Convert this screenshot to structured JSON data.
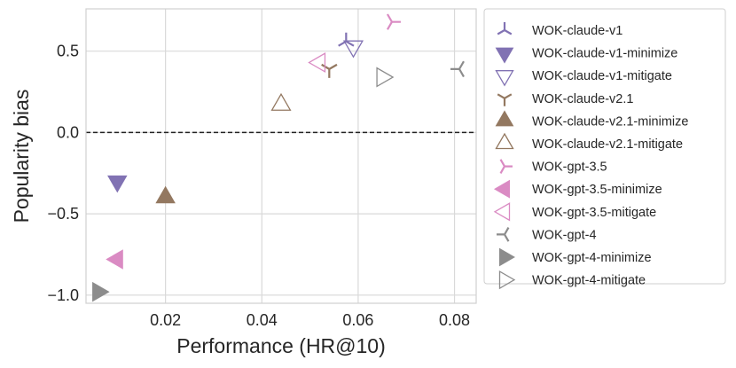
{
  "chart_data": {
    "type": "scatter",
    "xlabel": "Performance (HR@10)",
    "ylabel": "Popularity bias",
    "xlim": [
      0.0035,
      0.0845
    ],
    "ylim": [
      -1.05,
      0.76
    ],
    "xticks": [
      0.02,
      0.04,
      0.06,
      0.08
    ],
    "xtick_labels": [
      "0.02",
      "0.04",
      "0.06",
      "0.08"
    ],
    "yticks": [
      -1.0,
      -0.5,
      0.0,
      0.5
    ],
    "ytick_labels": [
      "−1.0",
      "−0.5",
      "0.0",
      "0.5"
    ],
    "grid": true,
    "reference_line": {
      "y": 0.0,
      "style": "dashed",
      "color": "#222222"
    },
    "legend_position": "outside-right",
    "series": [
      {
        "name": "WOK-claude-v1",
        "color": "#8172b3",
        "marker": "tri_down",
        "filled": false,
        "x": 0.0575,
        "y": 0.56
      },
      {
        "name": "WOK-claude-v1-minimize",
        "color": "#8172b3",
        "marker": "triangle_down",
        "filled": true,
        "x": 0.01,
        "y": -0.3
      },
      {
        "name": "WOK-claude-v1-mitigate",
        "color": "#8172b3",
        "marker": "triangle_down",
        "filled": false,
        "x": 0.059,
        "y": 0.53
      },
      {
        "name": "WOK-claude-v2.1",
        "color": "#937860",
        "marker": "tri_up",
        "filled": false,
        "x": 0.054,
        "y": 0.39
      },
      {
        "name": "WOK-claude-v2.1-minimize",
        "color": "#937860",
        "marker": "triangle_up",
        "filled": true,
        "x": 0.02,
        "y": -0.4
      },
      {
        "name": "WOK-claude-v2.1-mitigate",
        "color": "#937860",
        "marker": "triangle_up",
        "filled": false,
        "x": 0.044,
        "y": 0.17
      },
      {
        "name": "WOK-gpt-3.5",
        "color": "#da8bc3",
        "marker": "tri_left",
        "filled": false,
        "x": 0.067,
        "y": 0.68
      },
      {
        "name": "WOK-gpt-3.5-minimize",
        "color": "#da8bc3",
        "marker": "triangle_left",
        "filled": true,
        "x": 0.01,
        "y": -0.78
      },
      {
        "name": "WOK-gpt-3.5-mitigate",
        "color": "#da8bc3",
        "marker": "triangle_left",
        "filled": false,
        "x": 0.052,
        "y": 0.43
      },
      {
        "name": "WOK-gpt-4",
        "color": "#8c8c8c",
        "marker": "tri_right",
        "filled": false,
        "x": 0.081,
        "y": 0.39
      },
      {
        "name": "WOK-gpt-4-minimize",
        "color": "#8c8c8c",
        "marker": "triangle_right",
        "filled": true,
        "x": 0.006,
        "y": -0.98
      },
      {
        "name": "WOK-gpt-4-mitigate",
        "color": "#8c8c8c",
        "marker": "triangle_right",
        "filled": false,
        "x": 0.065,
        "y": 0.34
      }
    ]
  }
}
